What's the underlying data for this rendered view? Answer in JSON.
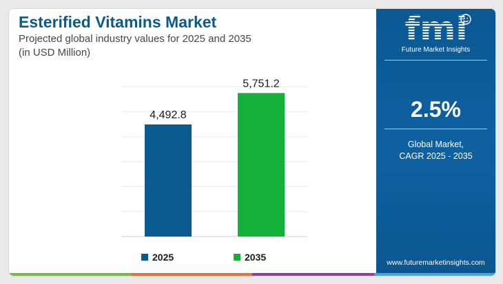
{
  "chart_data": {
    "type": "bar",
    "title": "Esterified Vitamins Market",
    "subtitle": [
      "Projected global industry values for 2025 and 2035",
      "(in USD Million)"
    ],
    "categories": [
      "2025",
      "2035"
    ],
    "values": [
      4492.8,
      5751.2
    ],
    "value_labels": [
      "4,492.8",
      "5,751.2"
    ],
    "colors": [
      "#0b5a8f",
      "#14b13a"
    ],
    "ylim": [
      0,
      7000
    ],
    "grid": true,
    "legend_position": "bottom"
  },
  "legend": [
    {
      "label": "2025",
      "color": "#0b5a8f"
    },
    {
      "label": "2035",
      "color": "#14b13a"
    }
  ],
  "side_panel": {
    "logo_text": "fmi",
    "logo_subtitle": "Future Market Insights",
    "cagr_value": "2.5%",
    "cagr_label_line1": "Global Market,",
    "cagr_label_line2": "CAGR 2025 - 2035",
    "website": "www.futuremarketinsights.com"
  },
  "bottom_bar_colors": [
    "#7ab648",
    "#e8733a",
    "#8a3f98",
    "#4ba3d8"
  ]
}
